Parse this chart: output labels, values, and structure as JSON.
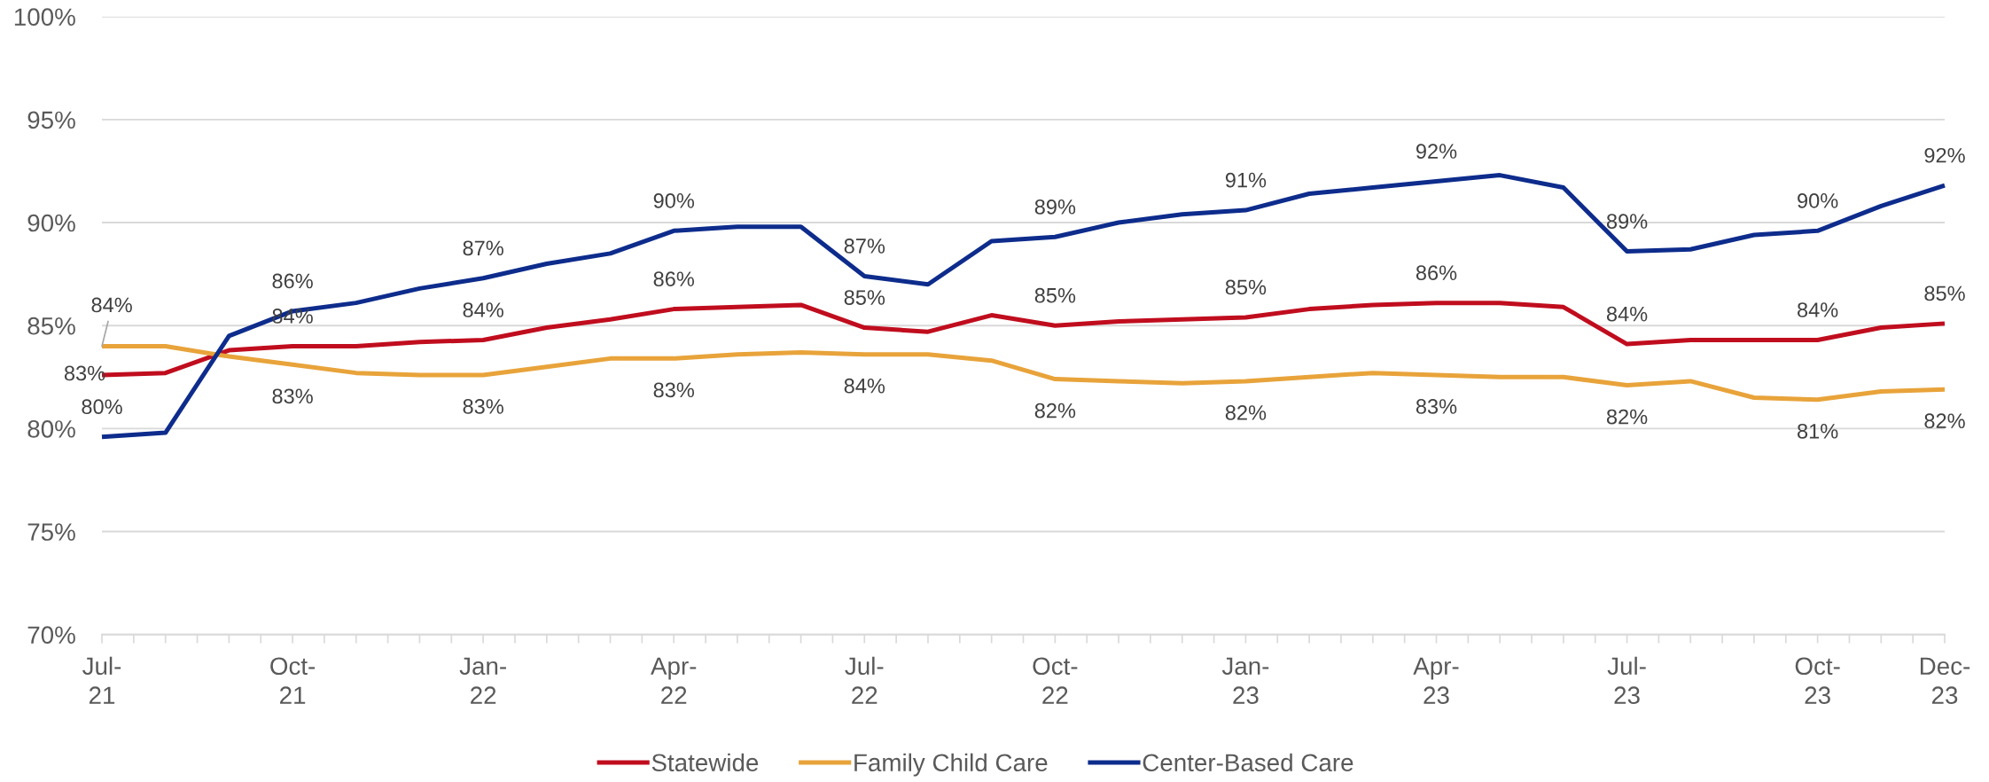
{
  "chart_data": {
    "type": "line",
    "categories": [
      "Jul-21",
      null,
      null,
      "Oct-21",
      null,
      null,
      "Jan-22",
      null,
      null,
      "Apr-22",
      null,
      null,
      "Jul-22",
      null,
      null,
      "Oct-22",
      null,
      null,
      "Jan-23",
      null,
      null,
      "Apr-23",
      null,
      null,
      "Jul-23",
      null,
      null,
      "Oct-23",
      null,
      "Dec-23"
    ],
    "series": [
      {
        "name": "Statewide",
        "color": "#c00d1e",
        "values": [
          82.6,
          82.7,
          83.8,
          84.0,
          84.0,
          84.2,
          84.3,
          84.9,
          85.3,
          85.8,
          85.9,
          86.0,
          84.9,
          84.7,
          85.5,
          85.0,
          85.2,
          85.3,
          85.4,
          85.8,
          86.0,
          86.1,
          86.1,
          85.9,
          84.1,
          84.3,
          84.3,
          84.3,
          84.9,
          85.1
        ],
        "value_labels": [
          "83%",
          null,
          null,
          "84%",
          null,
          null,
          "84%",
          null,
          null,
          "86%",
          null,
          null,
          "85%",
          null,
          null,
          "85%",
          null,
          null,
          "85%",
          null,
          null,
          "86%",
          null,
          null,
          "84%",
          null,
          null,
          "84%",
          null,
          "85%"
        ]
      },
      {
        "name": "Family Child Care",
        "color": "#e8a33a",
        "values": [
          84.0,
          84.0,
          83.5,
          83.1,
          82.7,
          82.6,
          82.6,
          83.0,
          83.4,
          83.4,
          83.6,
          83.7,
          83.6,
          83.6,
          83.3,
          82.4,
          82.3,
          82.2,
          82.3,
          82.5,
          82.7,
          82.6,
          82.5,
          82.5,
          82.1,
          82.3,
          81.5,
          81.4,
          81.8,
          81.9
        ],
        "value_labels": [
          "84%",
          null,
          null,
          "83%",
          null,
          null,
          "83%",
          null,
          null,
          "83%",
          null,
          null,
          "84%",
          null,
          null,
          "82%",
          null,
          null,
          "82%",
          null,
          null,
          "83%",
          null,
          null,
          "82%",
          null,
          null,
          "81%",
          null,
          "82%"
        ]
      },
      {
        "name": "Center-Based Care",
        "color": "#0d2c8c",
        "values": [
          79.6,
          79.8,
          84.5,
          85.7,
          86.1,
          86.8,
          87.3,
          88.0,
          88.5,
          89.6,
          89.8,
          89.8,
          87.4,
          87.0,
          89.1,
          89.3,
          90.0,
          90.4,
          90.6,
          91.4,
          91.7,
          92.0,
          92.3,
          91.7,
          88.6,
          88.7,
          89.4,
          89.6,
          90.8,
          91.8
        ],
        "value_labels": [
          "80%",
          null,
          null,
          "86%",
          null,
          null,
          "87%",
          null,
          null,
          "90%",
          null,
          null,
          "87%",
          null,
          null,
          "89%",
          null,
          null,
          "91%",
          null,
          null,
          "92%",
          null,
          null,
          "89%",
          null,
          null,
          "90%",
          null,
          "92%"
        ]
      }
    ],
    "ylim": [
      70,
      100
    ],
    "yticks": [
      {
        "value": 70,
        "label": "70%"
      },
      {
        "value": 75,
        "label": "75%"
      },
      {
        "value": 80,
        "label": "80%"
      },
      {
        "value": 85,
        "label": "85%"
      },
      {
        "value": 90,
        "label": "90%"
      },
      {
        "value": 95,
        "label": "95%"
      },
      {
        "value": 100,
        "label": "100%"
      }
    ],
    "grid": "y",
    "legend": "bottom",
    "line_style": "solid"
  }
}
